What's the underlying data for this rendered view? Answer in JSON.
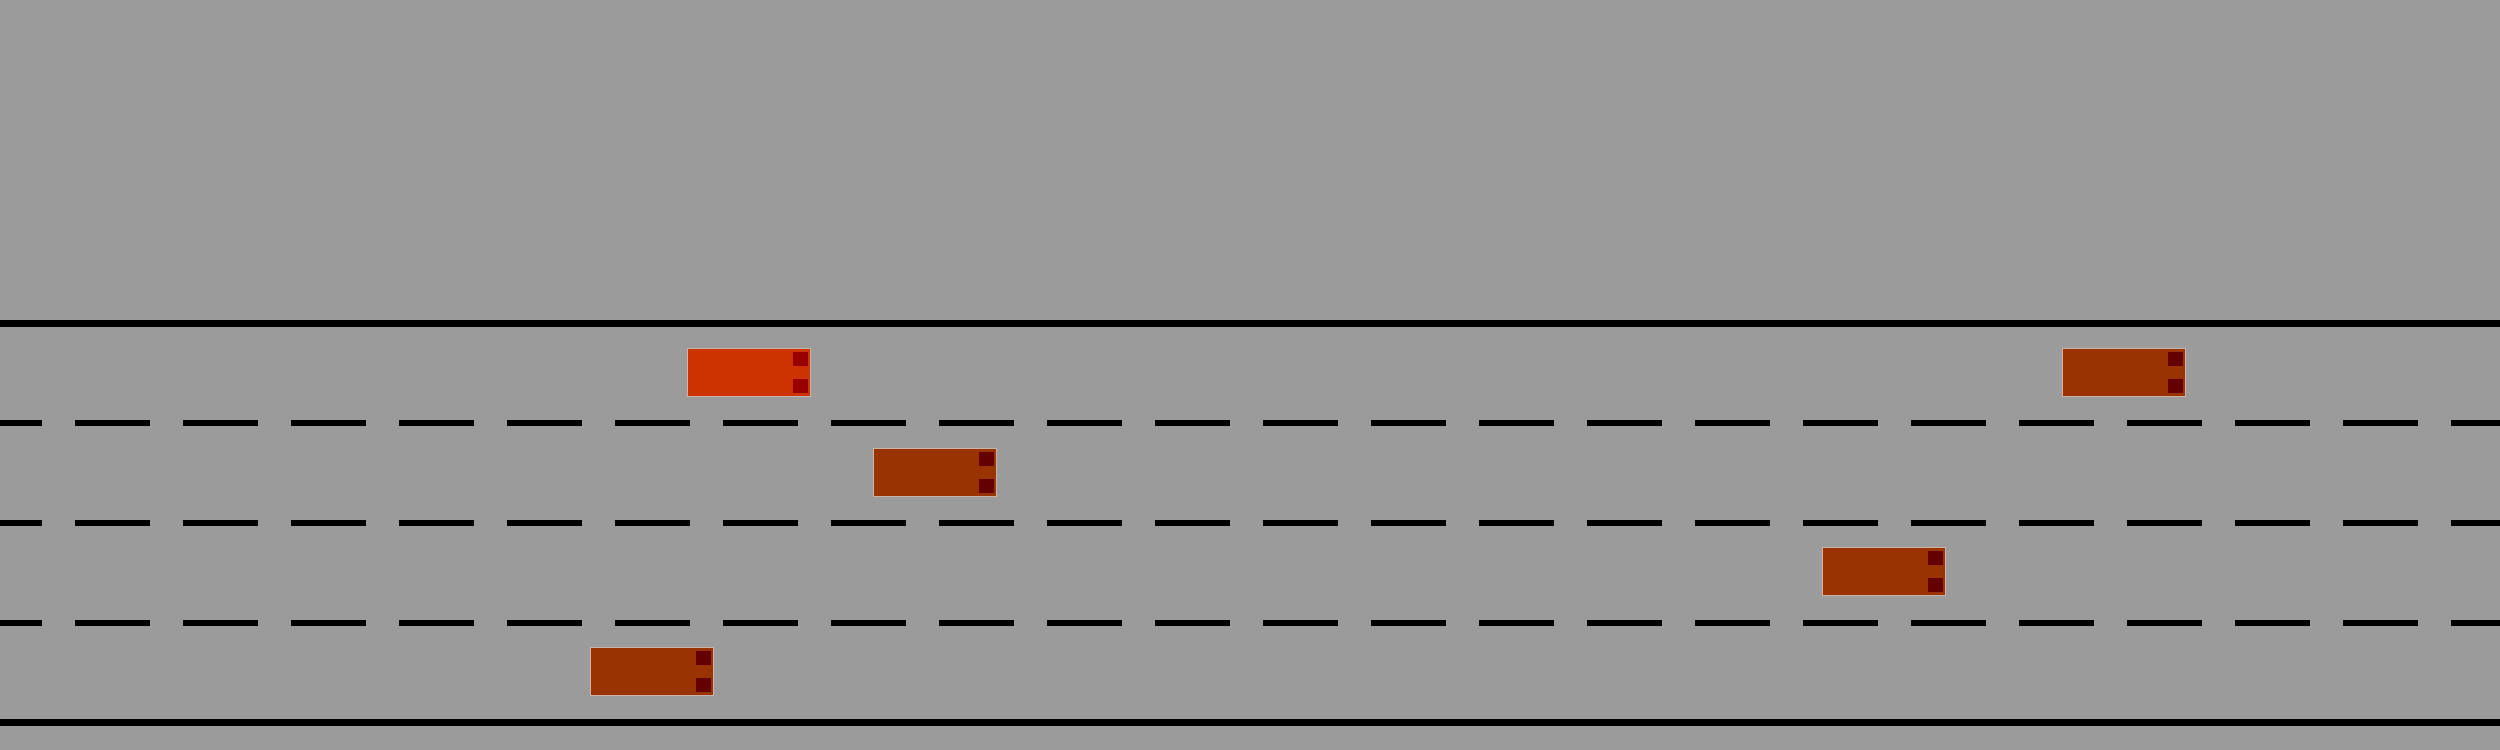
{
  "scene": {
    "background_color": "#9b9b9b",
    "line_color": "#000000",
    "lane_count": 4,
    "dash_pattern": "solid-edges-dashed-dividers"
  },
  "vehicles": {
    "ego": {
      "icon": "ego-car-icon",
      "body_color": "#cc3300",
      "light_color": "#990000",
      "lane": 1
    },
    "others": [
      {
        "icon": "car-icon",
        "body_color": "#993300",
        "light_color": "#660000",
        "lane": 2
      },
      {
        "icon": "car-icon",
        "body_color": "#993300",
        "light_color": "#660000",
        "lane": 4
      },
      {
        "icon": "car-icon",
        "body_color": "#993300",
        "light_color": "#660000",
        "lane": 3
      },
      {
        "icon": "car-icon",
        "body_color": "#993300",
        "light_color": "#660000",
        "lane": 1
      }
    ]
  }
}
